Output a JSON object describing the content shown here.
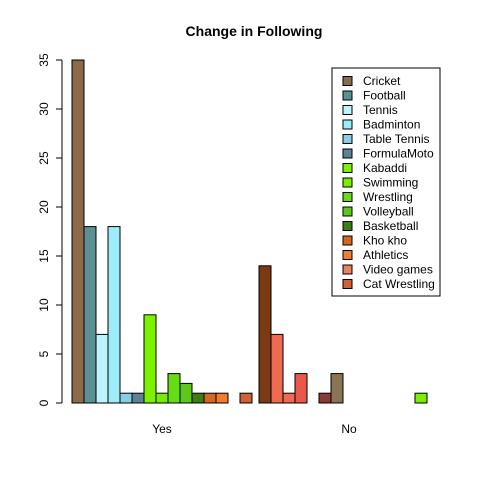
{
  "chart_data": {
    "type": "bar",
    "title": "Change in Following",
    "xlabel": "",
    "ylabel": "",
    "ylim": [
      0,
      35
    ],
    "yticks": [
      0,
      5,
      10,
      15,
      20,
      25,
      30,
      35
    ],
    "grid": false,
    "legend_position": "top-right",
    "categories": [
      "Yes",
      "No"
    ],
    "yes_series": [
      {
        "color": "#8B6B4A",
        "value": 35
      },
      {
        "color": "#5B9195",
        "value": 18
      },
      {
        "color": "#BDF4FB",
        "value": 7
      },
      {
        "color": "#9DECF8",
        "value": 18
      },
      {
        "color": "#86CEE6",
        "value": 1
      },
      {
        "color": "#5E8294",
        "value": 1
      },
      {
        "color": "#7CF200",
        "value": 9
      },
      {
        "color": "#76EE00",
        "value": 1
      },
      {
        "color": "#66DD11",
        "value": 3
      },
      {
        "color": "#5FC61A",
        "value": 2
      },
      {
        "color": "#3D7E14",
        "value": 1
      },
      {
        "color": "#D2691E",
        "value": 1
      },
      {
        "color": "#F07D2E",
        "value": 1
      },
      {
        "color": "#E8825E",
        "value": 0
      },
      {
        "color": "#CD6237",
        "value": 1
      }
    ],
    "no_series": [
      {
        "color": "#7B3A14",
        "value": 14
      },
      {
        "color": "#EE6A50",
        "value": 7
      },
      {
        "color": "#EE6A50",
        "value": 1
      },
      {
        "color": "#E9584B",
        "value": 3
      },
      {
        "color": "#B45A5A",
        "value": 0
      },
      {
        "color": "#8B3A3A",
        "value": 1
      },
      {
        "color": "#8B7355",
        "value": 3
      },
      {
        "color": "#8B7355",
        "value": 0
      },
      {
        "color": "#8B7355",
        "value": 0
      },
      {
        "color": "#8B7355",
        "value": 0
      },
      {
        "color": "#8B7355",
        "value": 0
      },
      {
        "color": "#8B7355",
        "value": 0
      },
      {
        "color": "#8B7355",
        "value": 0
      },
      {
        "color": "#7CEE00",
        "value": 1
      },
      {
        "color": "#7CEE00",
        "value": 0
      }
    ],
    "legend": [
      {
        "label": "Cricket",
        "color": "#8B6B4A"
      },
      {
        "label": "Football",
        "color": "#5B9195"
      },
      {
        "label": "Tennis",
        "color": "#BDF4FB"
      },
      {
        "label": "Badminton",
        "color": "#9DECF8"
      },
      {
        "label": "Table Tennis",
        "color": "#86CEE6"
      },
      {
        "label": "FormulaMoto",
        "color": "#5E8294"
      },
      {
        "label": "Kabaddi",
        "color": "#7CF200"
      },
      {
        "label": "Swimming",
        "color": "#76EE00"
      },
      {
        "label": "Wrestling",
        "color": "#66DD11"
      },
      {
        "label": "Volleyball",
        "color": "#5FC61A"
      },
      {
        "label": "Basketball",
        "color": "#3D7E14"
      },
      {
        "label": "Kho kho",
        "color": "#D2691E"
      },
      {
        "label": "Athletics",
        "color": "#F07D2E"
      },
      {
        "label": "Video games",
        "color": "#E8825E"
      },
      {
        "label": "Cat Wrestling",
        "color": "#CD6237"
      }
    ]
  }
}
